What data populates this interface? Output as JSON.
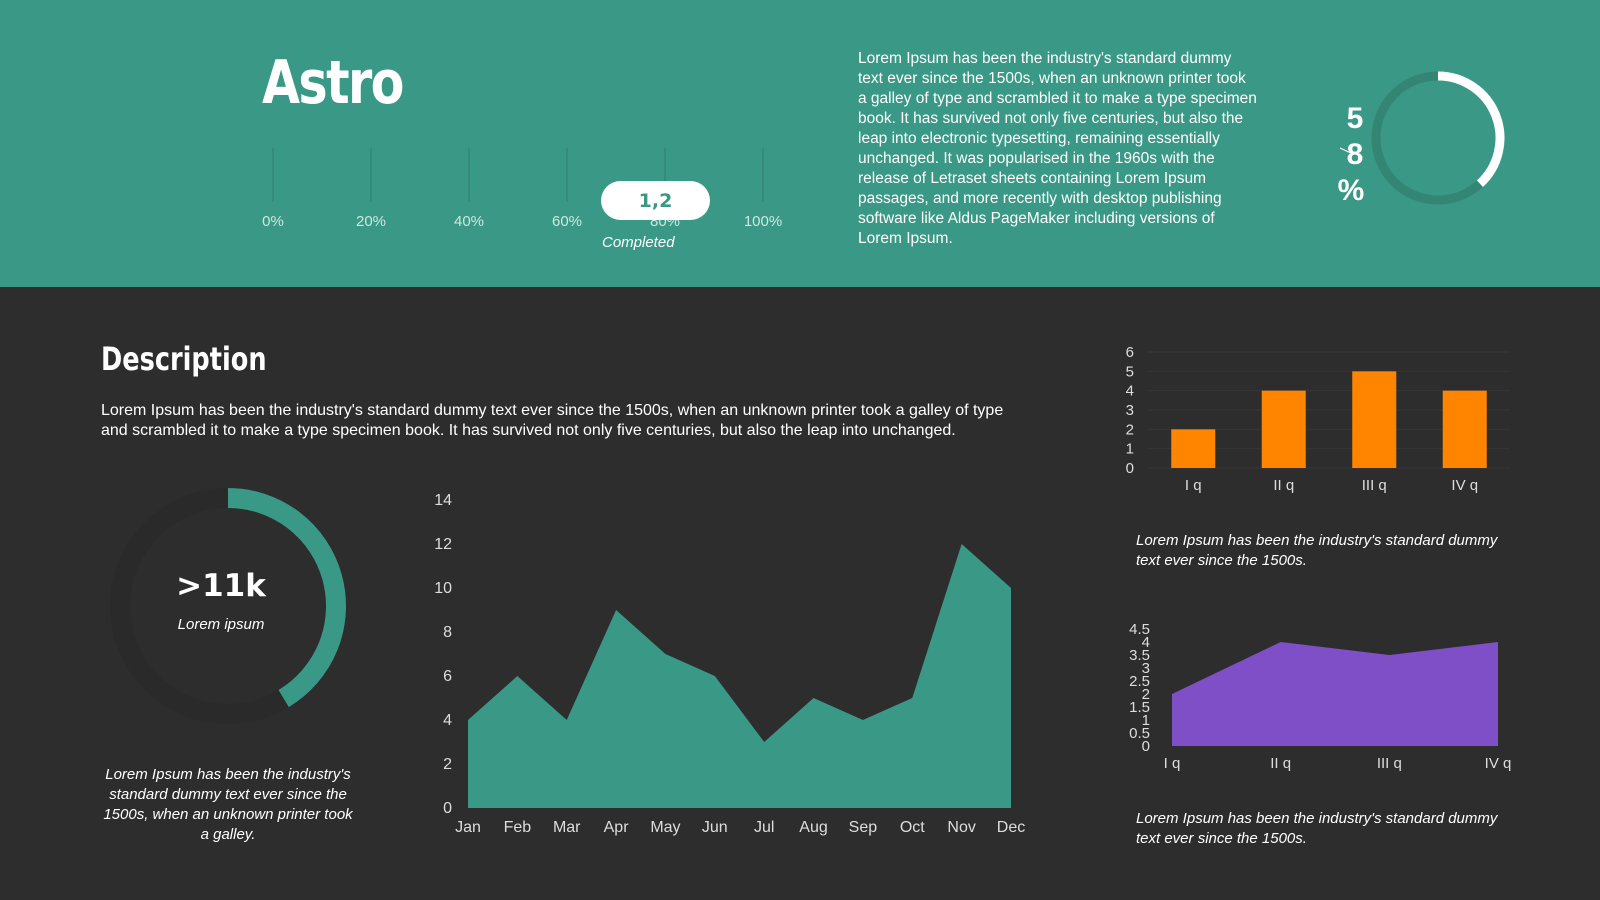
{
  "header": {
    "title": "Astro",
    "progress": {
      "ticks": [
        "0%",
        "20%",
        "40%",
        "60%",
        "80%",
        "100%"
      ],
      "value_label": "1,2",
      "status": "Completed"
    },
    "paragraph": "Lorem Ipsum has been the industry's standard dummy text ever since the 1500s, when an unknown printer took a galley of type and scrambled it to make a type specimen book. It has survived not only five centuries, but also the leap into electronic typesetting, remaining essentially unchanged. It was popularised in the 1960s with the release of Letraset sheets containing Lorem Ipsum passages, and more recently with desktop publishing software like Aldus PageMaker including versions of Lorem Ipsum.",
    "gauge": {
      "chars": [
        "5",
        "8",
        "%"
      ],
      "value_percent": 58
    }
  },
  "description": {
    "title": "Description",
    "text": "Lorem Ipsum has been the industry's standard dummy text ever since the 1500s, when an unknown printer took a galley of type and scrambled it to make a type specimen book. It has survived not only five centuries, but also the leap into unchanged."
  },
  "donut": {
    "value": ">11k",
    "label": "Lorem ipsum",
    "caption": "Lorem Ipsum has been the industry's standard dummy text ever since the 1500s, when an unknown printer took a galley."
  },
  "captions": {
    "bar": "Lorem Ipsum has been the industry's standard dummy text ever since the 1500s.",
    "area": "Lorem Ipsum has been the industry's standard dummy text ever since the 1500s."
  },
  "colors": {
    "teal": "#3a9886",
    "dark": "#2d2d2d",
    "orange": "#ff8500",
    "purple": "#7f4fc8"
  },
  "chart_data": [
    {
      "type": "area",
      "categories": [
        "Jan",
        "Feb",
        "Mar",
        "Apr",
        "May",
        "Jun",
        "Jul",
        "Aug",
        "Sep",
        "Oct",
        "Nov",
        "Dec"
      ],
      "values": [
        4,
        6,
        4,
        9,
        7,
        6,
        3,
        5,
        4,
        5,
        12,
        10
      ],
      "yticks": [
        "0",
        "2",
        "4",
        "6",
        "8",
        "10",
        "12",
        "14"
      ],
      "ylim": [
        0,
        14
      ],
      "color": "#3a9886"
    },
    {
      "type": "bar",
      "categories": [
        "I q",
        "II q",
        "III q",
        "IV q"
      ],
      "values": [
        2,
        4,
        5,
        4
      ],
      "yticks": [
        "0",
        "1",
        "2",
        "3",
        "4",
        "5",
        "6"
      ],
      "ylim": [
        0,
        6
      ],
      "color": "#ff8500"
    },
    {
      "type": "area",
      "categories": [
        "I q",
        "II q",
        "III q",
        "IV q"
      ],
      "values": [
        2,
        4,
        3.5,
        4
      ],
      "yticks": [
        "0",
        "0.5",
        "1",
        "1.5",
        "2",
        "2.5",
        "3",
        "3.5",
        "4",
        "4.5"
      ],
      "ylim": [
        0,
        4.5
      ],
      "color": "#7f4fc8"
    }
  ]
}
